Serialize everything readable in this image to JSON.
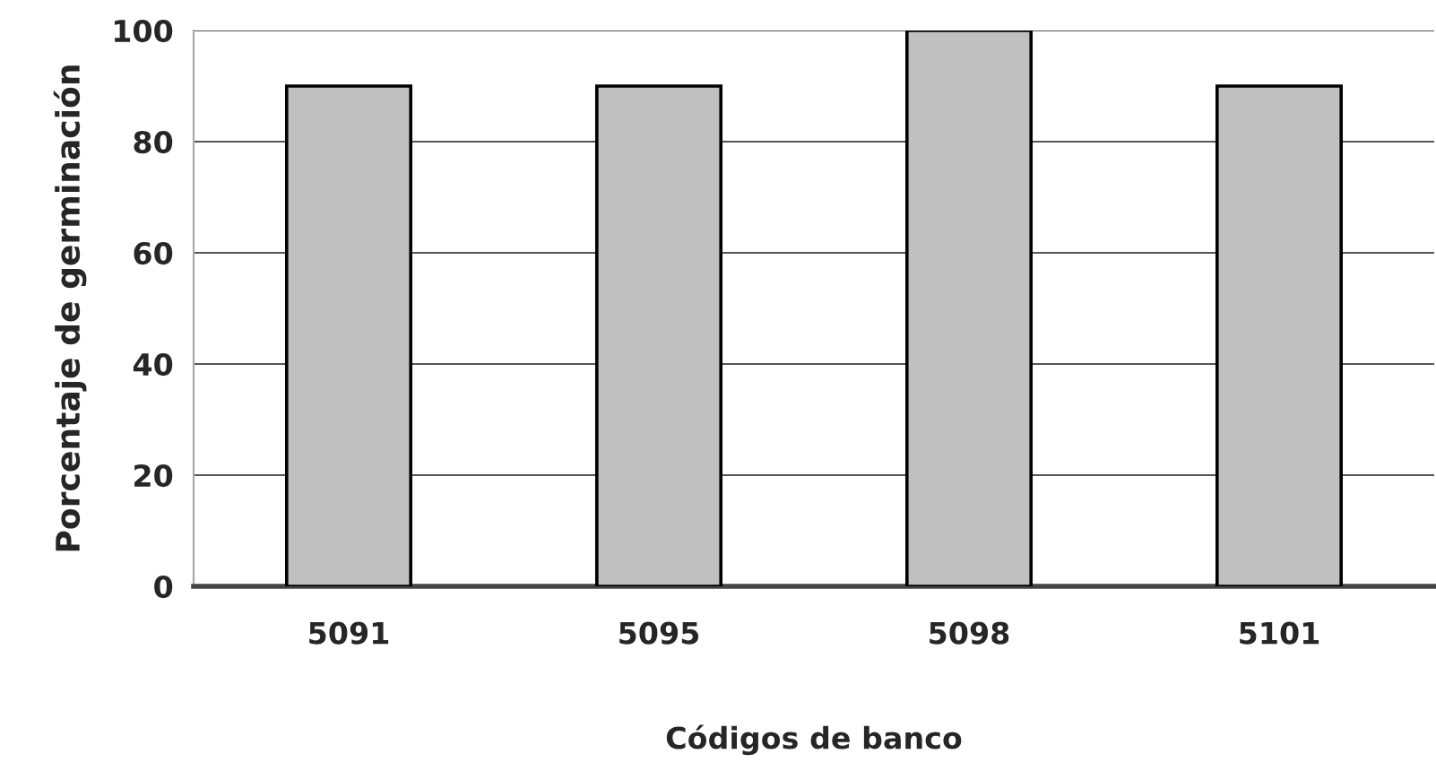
{
  "chart_data": {
    "type": "bar",
    "xlabel": "Códigos de banco",
    "ylabel": "Porcentaje de germinación",
    "categories": [
      "5091",
      "5095",
      "5098",
      "5101"
    ],
    "values": [
      90,
      90,
      100,
      90
    ],
    "color": "#c0c0c0",
    "ylim": [
      0,
      100
    ],
    "yticks": [
      0,
      20,
      40,
      60,
      80,
      100
    ],
    "grid": "y",
    "legend": false
  }
}
